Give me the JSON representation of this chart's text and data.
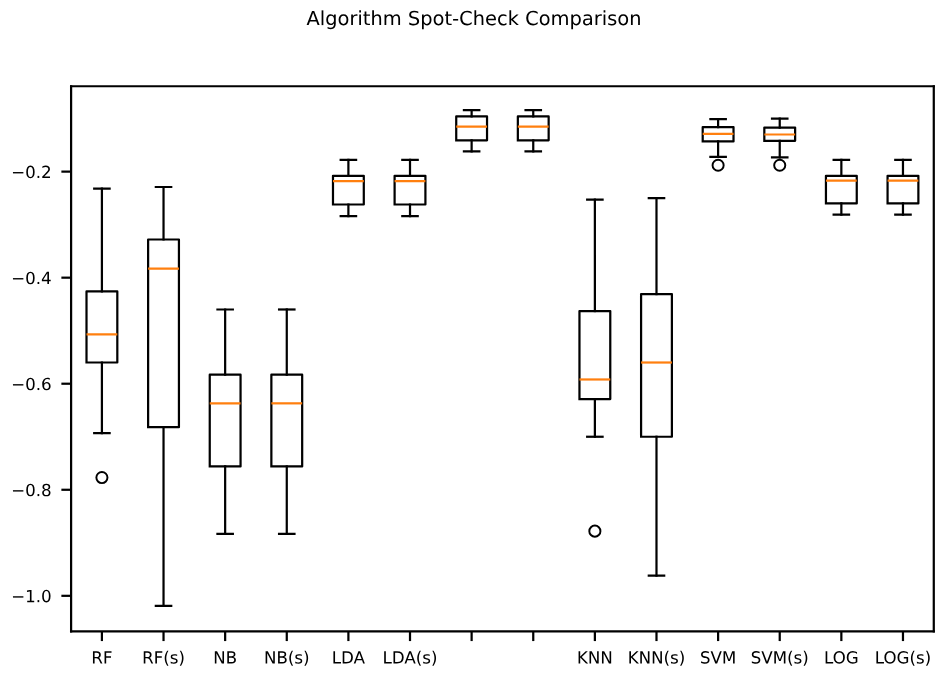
{
  "chart_data": {
    "type": "box",
    "title": "Algorithm Spot-Check Comparison",
    "categories": [
      "RF",
      "RF(s)",
      "NB",
      "NB(s)",
      "LDA",
      "LDA(s)",
      null,
      null,
      "KNN",
      "KNN(s)",
      "SVM",
      "SVM(s)",
      "LOG",
      "LOG(s)"
    ],
    "boxes": [
      {
        "low": -0.693,
        "q1": -0.56,
        "median": -0.507,
        "q3": -0.426,
        "high": -0.232,
        "outliers": [
          -0.777
        ]
      },
      {
        "low": -1.019,
        "q1": -0.682,
        "median": -0.383,
        "q3": -0.328,
        "high": -0.229
      },
      {
        "low": -0.883,
        "q1": -0.756,
        "median": -0.637,
        "q3": -0.583,
        "high": -0.46
      },
      {
        "low": -0.883,
        "q1": -0.756,
        "median": -0.637,
        "q3": -0.583,
        "high": -0.46
      },
      {
        "low": -0.284,
        "q1": -0.262,
        "median": -0.218,
        "q3": -0.208,
        "high": -0.178
      },
      {
        "low": -0.284,
        "q1": -0.262,
        "median": -0.218,
        "q3": -0.208,
        "high": -0.178
      },
      {
        "low": -0.162,
        "q1": -0.141,
        "median": -0.115,
        "q3": -0.096,
        "high": -0.084
      },
      {
        "low": -0.162,
        "q1": -0.141,
        "median": -0.115,
        "q3": -0.096,
        "high": -0.084
      },
      {
        "low": -0.7,
        "q1": -0.629,
        "median": -0.592,
        "q3": -0.463,
        "high": -0.253,
        "outliers": [
          -0.878
        ]
      },
      {
        "low": -0.962,
        "q1": -0.7,
        "median": -0.56,
        "q3": -0.431,
        "high": -0.25
      },
      {
        "low": -0.172,
        "q1": -0.143,
        "median": -0.129,
        "q3": -0.116,
        "high": -0.101,
        "outliers": [
          -0.188
        ]
      },
      {
        "low": -0.173,
        "q1": -0.142,
        "median": -0.13,
        "q3": -0.117,
        "high": -0.1,
        "outliers": [
          -0.188
        ]
      },
      {
        "low": -0.281,
        "q1": -0.26,
        "median": -0.217,
        "q3": -0.208,
        "high": -0.178
      },
      {
        "low": -0.281,
        "q1": -0.26,
        "median": -0.217,
        "q3": -0.208,
        "high": -0.178
      }
    ],
    "ylim": [
      -1.067,
      -0.039
    ],
    "yticks": [
      {
        "value": -1.0,
        "label": "−1.0"
      },
      {
        "value": -0.8,
        "label": "−0.8"
      },
      {
        "value": -0.6,
        "label": "−0.6"
      },
      {
        "value": -0.4,
        "label": "−0.4"
      },
      {
        "value": -0.2,
        "label": "−0.2"
      }
    ],
    "grid": false,
    "legend": false
  }
}
